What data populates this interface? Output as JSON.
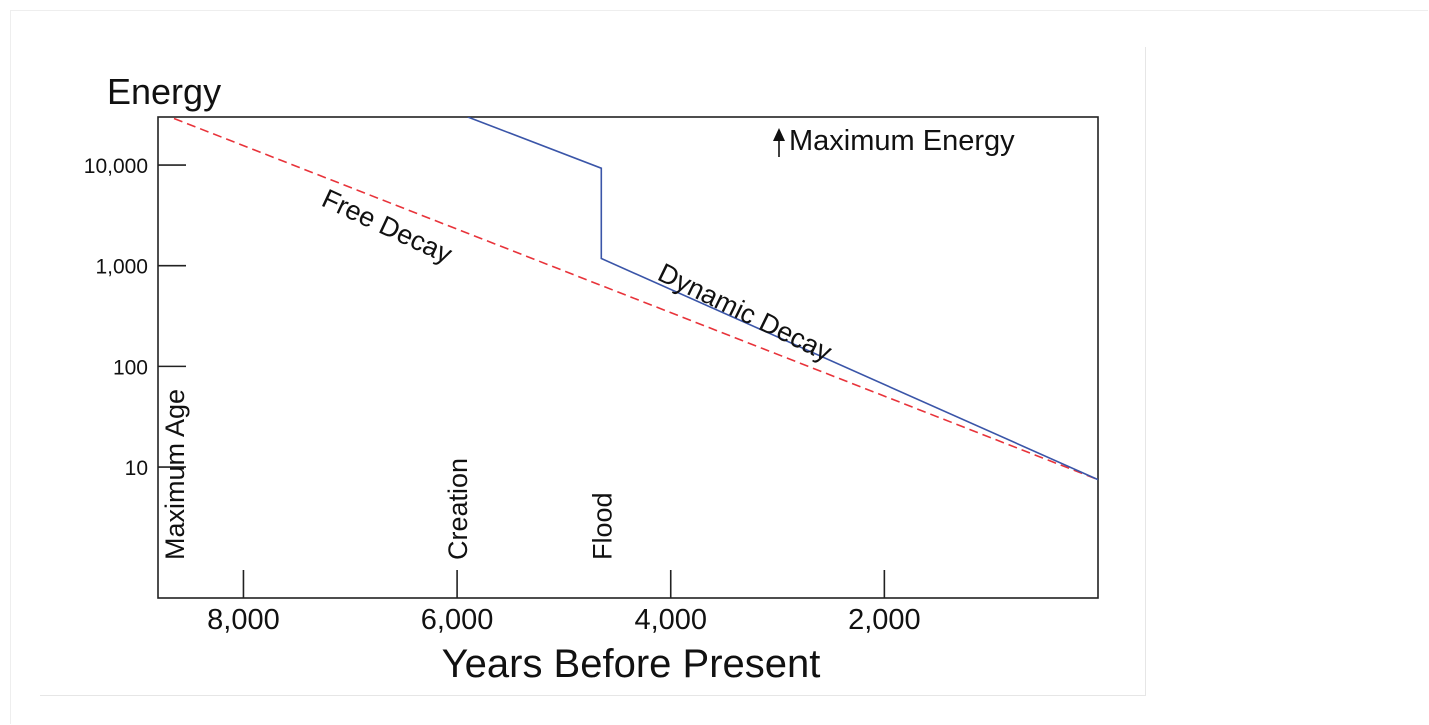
{
  "chart_data": {
    "type": "line",
    "title": "Energy",
    "xlabel": "Years Before Present",
    "ylabel": "",
    "x_axis": {
      "range": [
        8800,
        0
      ],
      "reversed": true,
      "ticks": [
        8000,
        6000,
        4000,
        2000
      ],
      "tick_labels": [
        "8,000",
        "6,000",
        "4,000",
        "2,000"
      ]
    },
    "y_axis": {
      "scale": "log",
      "range": [
        0.5,
        30000
      ],
      "ticks": [
        10,
        100,
        1000,
        10000
      ],
      "tick_labels": [
        "10",
        "100",
        "1,000",
        "10,000"
      ]
    },
    "grid": false,
    "series": [
      {
        "name": "Free Decay",
        "style": "dashed",
        "color": "#e8333a",
        "x": [
          8650,
          0
        ],
        "y": [
          29000,
          7.5
        ]
      },
      {
        "name": "Dynamic Decay",
        "style": "solid",
        "color": "#3a55a8",
        "x": [
          5900,
          4650,
          4650,
          0
        ],
        "y": [
          30000,
          9300,
          1180,
          7.5
        ]
      }
    ],
    "markers": [
      {
        "label": "Maximum Age",
        "x": 8650
      },
      {
        "label": "Creation",
        "x": 6000
      },
      {
        "label": "Flood",
        "x": 4650
      }
    ],
    "annotations": {
      "max_energy": "Maximum Energy",
      "free_decay": "Free Decay",
      "dynamic_decay": "Dynamic Decay"
    }
  }
}
